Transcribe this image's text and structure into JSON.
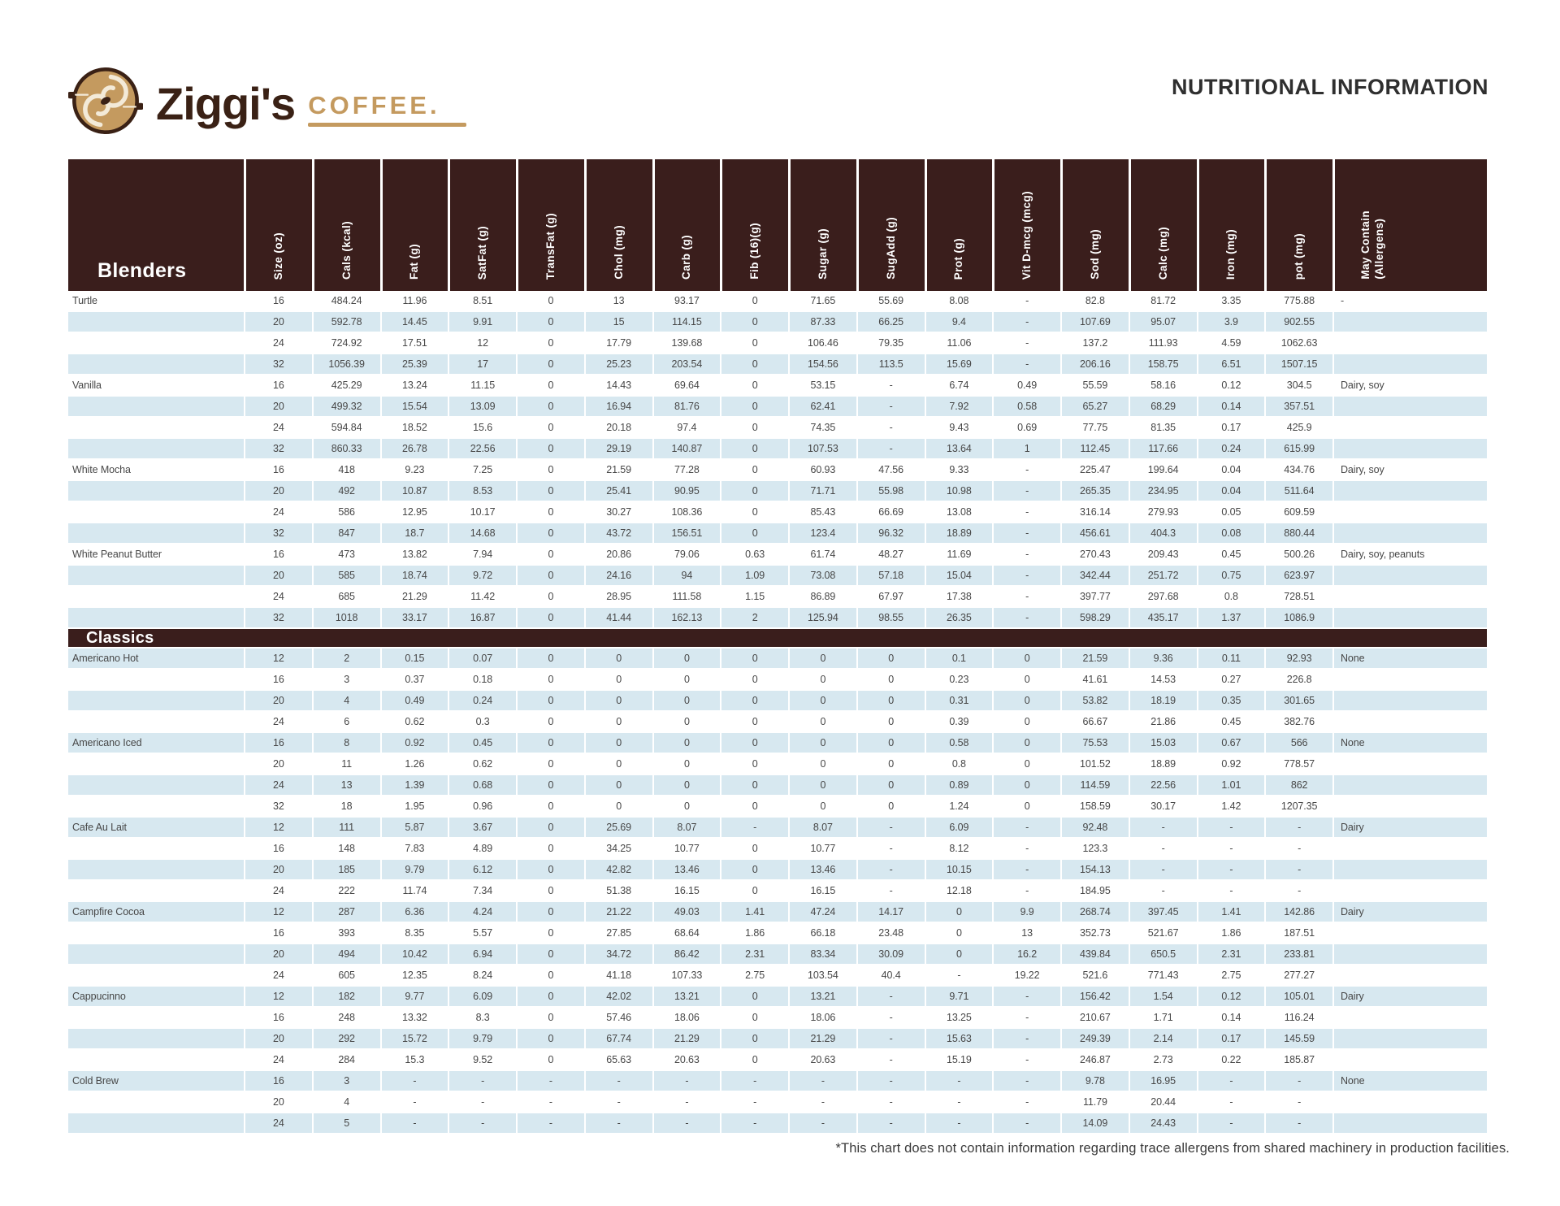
{
  "brand": {
    "name": "Ziggi's",
    "word": "COFFEE",
    "mark": "."
  },
  "title": "NUTRITIONAL INFORMATION",
  "footnote": "*This chart does not contain information regarding trace allergens from shared machinery in production facilities.",
  "table": {
    "first_col_header": "Blenders",
    "columns": [
      "Size (oz)",
      "Cals (kcal)",
      "Fat (g)",
      "SatFat (g)",
      "TransFat (g)",
      "Chol (mg)",
      "Carb (g)",
      "Fib (16)(g)",
      "Sugar (g)",
      "SugAdd (g)",
      "Prot (g)",
      "Vit D-mcg (mcg)",
      "Sod (mg)",
      "Calc (mg)",
      "Iron (mg)",
      "pot (mg)",
      "May Contain\n(Allergens)"
    ],
    "sections": [
      {
        "label": "",
        "first_shade": "white",
        "drinks": [
          {
            "name": "Turtle",
            "allergens": "-",
            "rows": [
              [
                "16",
                "484.24",
                "11.96",
                "8.51",
                "0",
                "13",
                "93.17",
                "0",
                "71.65",
                "55.69",
                "8.08",
                "-",
                "82.8",
                "81.72",
                "3.35",
                "775.88"
              ],
              [
                "20",
                "592.78",
                "14.45",
                "9.91",
                "0",
                "15",
                "114.15",
                "0",
                "87.33",
                "66.25",
                "9.4",
                "-",
                "107.69",
                "95.07",
                "3.9",
                "902.55"
              ],
              [
                "24",
                "724.92",
                "17.51",
                "12",
                "0",
                "17.79",
                "139.68",
                "0",
                "106.46",
                "79.35",
                "11.06",
                "-",
                "137.2",
                "111.93",
                "4.59",
                "1062.63"
              ],
              [
                "32",
                "1056.39",
                "25.39",
                "17",
                "0",
                "25.23",
                "203.54",
                "0",
                "154.56",
                "113.5",
                "15.69",
                "-",
                "206.16",
                "158.75",
                "6.51",
                "1507.15"
              ]
            ]
          },
          {
            "name": "Vanilla",
            "allergens": "Dairy, soy",
            "rows": [
              [
                "16",
                "425.29",
                "13.24",
                "11.15",
                "0",
                "14.43",
                "69.64",
                "0",
                "53.15",
                "-",
                "6.74",
                "0.49",
                "55.59",
                "58.16",
                "0.12",
                "304.5"
              ],
              [
                "20",
                "499.32",
                "15.54",
                "13.09",
                "0",
                "16.94",
                "81.76",
                "0",
                "62.41",
                "-",
                "7.92",
                "0.58",
                "65.27",
                "68.29",
                "0.14",
                "357.51"
              ],
              [
                "24",
                "594.84",
                "18.52",
                "15.6",
                "0",
                "20.18",
                "97.4",
                "0",
                "74.35",
                "-",
                "9.43",
                "0.69",
                "77.75",
                "81.35",
                "0.17",
                "425.9"
              ],
              [
                "32",
                "860.33",
                "26.78",
                "22.56",
                "0",
                "29.19",
                "140.87",
                "0",
                "107.53",
                "-",
                "13.64",
                "1",
                "112.45",
                "117.66",
                "0.24",
                "615.99"
              ]
            ]
          },
          {
            "name": "White Mocha",
            "allergens": "Dairy, soy",
            "rows": [
              [
                "16",
                "418",
                "9.23",
                "7.25",
                "0",
                "21.59",
                "77.28",
                "0",
                "60.93",
                "47.56",
                "9.33",
                "-",
                "225.47",
                "199.64",
                "0.04",
                "434.76"
              ],
              [
                "20",
                "492",
                "10.87",
                "8.53",
                "0",
                "25.41",
                "90.95",
                "0",
                "71.71",
                "55.98",
                "10.98",
                "-",
                "265.35",
                "234.95",
                "0.04",
                "511.64"
              ],
              [
                "24",
                "586",
                "12.95",
                "10.17",
                "0",
                "30.27",
                "108.36",
                "0",
                "85.43",
                "66.69",
                "13.08",
                "-",
                "316.14",
                "279.93",
                "0.05",
                "609.59"
              ],
              [
                "32",
                "847",
                "18.7",
                "14.68",
                "0",
                "43.72",
                "156.51",
                "0",
                "123.4",
                "96.32",
                "18.89",
                "-",
                "456.61",
                "404.3",
                "0.08",
                "880.44"
              ]
            ]
          },
          {
            "name": "White Peanut Butter",
            "allergens": "Dairy, soy, peanuts",
            "rows": [
              [
                "16",
                "473",
                "13.82",
                "7.94",
                "0",
                "20.86",
                "79.06",
                "0.63",
                "61.74",
                "48.27",
                "11.69",
                "-",
                "270.43",
                "209.43",
                "0.45",
                "500.26"
              ],
              [
                "20",
                "585",
                "18.74",
                "9.72",
                "0",
                "24.16",
                "94",
                "1.09",
                "73.08",
                "57.18",
                "15.04",
                "-",
                "342.44",
                "251.72",
                "0.75",
                "623.97"
              ],
              [
                "24",
                "685",
                "21.29",
                "11.42",
                "0",
                "28.95",
                "111.58",
                "1.15",
                "86.89",
                "67.97",
                "17.38",
                "-",
                "397.77",
                "297.68",
                "0.8",
                "728.51"
              ],
              [
                "32",
                "1018",
                "33.17",
                "16.87",
                "0",
                "41.44",
                "162.13",
                "2",
                "125.94",
                "98.55",
                "26.35",
                "-",
                "598.29",
                "435.17",
                "1.37",
                "1086.9"
              ]
            ]
          }
        ]
      },
      {
        "label": "Classics",
        "first_shade": "blue",
        "drinks": [
          {
            "name": "Americano Hot",
            "allergens": "None",
            "rows": [
              [
                "12",
                "2",
                "0.15",
                "0.07",
                "0",
                "0",
                "0",
                "0",
                "0",
                "0",
                "0.1",
                "0",
                "21.59",
                "9.36",
                "0.11",
                "92.93"
              ],
              [
                "16",
                "3",
                "0.37",
                "0.18",
                "0",
                "0",
                "0",
                "0",
                "0",
                "0",
                "0.23",
                "0",
                "41.61",
                "14.53",
                "0.27",
                "226.8"
              ],
              [
                "20",
                "4",
                "0.49",
                "0.24",
                "0",
                "0",
                "0",
                "0",
                "0",
                "0",
                "0.31",
                "0",
                "53.82",
                "18.19",
                "0.35",
                "301.65"
              ],
              [
                "24",
                "6",
                "0.62",
                "0.3",
                "0",
                "0",
                "0",
                "0",
                "0",
                "0",
                "0.39",
                "0",
                "66.67",
                "21.86",
                "0.45",
                "382.76"
              ]
            ]
          },
          {
            "name": "Americano Iced",
            "allergens": "None",
            "rows": [
              [
                "16",
                "8",
                "0.92",
                "0.45",
                "0",
                "0",
                "0",
                "0",
                "0",
                "0",
                "0.58",
                "0",
                "75.53",
                "15.03",
                "0.67",
                "566"
              ],
              [
                "20",
                "11",
                "1.26",
                "0.62",
                "0",
                "0",
                "0",
                "0",
                "0",
                "0",
                "0.8",
                "0",
                "101.52",
                "18.89",
                "0.92",
                "778.57"
              ],
              [
                "24",
                "13",
                "1.39",
                "0.68",
                "0",
                "0",
                "0",
                "0",
                "0",
                "0",
                "0.89",
                "0",
                "114.59",
                "22.56",
                "1.01",
                "862"
              ],
              [
                "32",
                "18",
                "1.95",
                "0.96",
                "0",
                "0",
                "0",
                "0",
                "0",
                "0",
                "1.24",
                "0",
                "158.59",
                "30.17",
                "1.42",
                "1207.35"
              ]
            ]
          },
          {
            "name": "Cafe Au Lait",
            "allergens": "Dairy",
            "rows": [
              [
                "12",
                "111",
                "5.87",
                "3.67",
                "0",
                "25.69",
                "8.07",
                "-",
                "8.07",
                "-",
                "6.09",
                "-",
                "92.48",
                "-",
                "-",
                "-"
              ],
              [
                "16",
                "148",
                "7.83",
                "4.89",
                "0",
                "34.25",
                "10.77",
                "0",
                "10.77",
                "-",
                "8.12",
                "-",
                "123.3",
                "-",
                "-",
                "-"
              ],
              [
                "20",
                "185",
                "9.79",
                "6.12",
                "0",
                "42.82",
                "13.46",
                "0",
                "13.46",
                "-",
                "10.15",
                "-",
                "154.13",
                "-",
                "-",
                "-"
              ],
              [
                "24",
                "222",
                "11.74",
                "7.34",
                "0",
                "51.38",
                "16.15",
                "0",
                "16.15",
                "-",
                "12.18",
                "-",
                "184.95",
                "-",
                "-",
                "-"
              ]
            ]
          },
          {
            "name": "Campfire Cocoa",
            "allergens": "Dairy",
            "rows": [
              [
                "12",
                "287",
                "6.36",
                "4.24",
                "0",
                "21.22",
                "49.03",
                "1.41",
                "47.24",
                "14.17",
                "0",
                "9.9",
                "268.74",
                "397.45",
                "1.41",
                "142.86"
              ],
              [
                "16",
                "393",
                "8.35",
                "5.57",
                "0",
                "27.85",
                "68.64",
                "1.86",
                "66.18",
                "23.48",
                "0",
                "13",
                "352.73",
                "521.67",
                "1.86",
                "187.51"
              ],
              [
                "20",
                "494",
                "10.42",
                "6.94",
                "0",
                "34.72",
                "86.42",
                "2.31",
                "83.34",
                "30.09",
                "0",
                "16.2",
                "439.84",
                "650.5",
                "2.31",
                "233.81"
              ],
              [
                "24",
                "605",
                "12.35",
                "8.24",
                "0",
                "41.18",
                "107.33",
                "2.75",
                "103.54",
                "40.4",
                "-",
                "19.22",
                "521.6",
                "771.43",
                "2.75",
                "277.27"
              ]
            ]
          },
          {
            "name": "Cappucinno",
            "allergens": "Dairy",
            "rows": [
              [
                "12",
                "182",
                "9.77",
                "6.09",
                "0",
                "42.02",
                "13.21",
                "0",
                "13.21",
                "-",
                "9.71",
                "-",
                "156.42",
                "1.54",
                "0.12",
                "105.01"
              ],
              [
                "16",
                "248",
                "13.32",
                "8.3",
                "0",
                "57.46",
                "18.06",
                "0",
                "18.06",
                "-",
                "13.25",
                "-",
                "210.67",
                "1.71",
                "0.14",
                "116.24"
              ],
              [
                "20",
                "292",
                "15.72",
                "9.79",
                "0",
                "67.74",
                "21.29",
                "0",
                "21.29",
                "-",
                "15.63",
                "-",
                "249.39",
                "2.14",
                "0.17",
                "145.59"
              ],
              [
                "24",
                "284",
                "15.3",
                "9.52",
                "0",
                "65.63",
                "20.63",
                "0",
                "20.63",
                "-",
                "15.19",
                "-",
                "246.87",
                "2.73",
                "0.22",
                "185.87"
              ]
            ]
          },
          {
            "name": "Cold Brew",
            "allergens": "None",
            "rows": [
              [
                "16",
                "3",
                "-",
                "-",
                "-",
                "-",
                "-",
                "-",
                "-",
                "-",
                "-",
                "-",
                "9.78",
                "16.95",
                "-",
                "-"
              ],
              [
                "20",
                "4",
                "-",
                "-",
                "-",
                "-",
                "-",
                "-",
                "-",
                "-",
                "-",
                "-",
                "11.79",
                "20.44",
                "-",
                "-"
              ],
              [
                "24",
                "5",
                "-",
                "-",
                "-",
                "-",
                "-",
                "-",
                "-",
                "-",
                "-",
                "-",
                "14.09",
                "24.43",
                "-",
                "-"
              ]
            ]
          }
        ]
      }
    ]
  },
  "colors": {
    "header_maroon": "#3a1e1c",
    "stripe_blue": "#d7e8f0",
    "brand_gold": "#c49a5f",
    "brand_dark": "#3a2115"
  }
}
